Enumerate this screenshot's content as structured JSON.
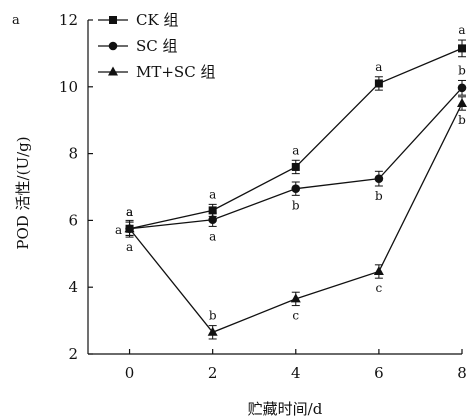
{
  "panel_label": "a",
  "chart_data": {
    "type": "line",
    "xlabel": "贮藏时间/d",
    "ylabel": "POD 活性/(U/g)",
    "x": [
      0,
      2,
      4,
      6,
      8
    ],
    "xlim": [
      -1,
      8
    ],
    "ylim": [
      2,
      12
    ],
    "xticks": [
      "0",
      "2",
      "4",
      "6",
      "8"
    ],
    "yticks": [
      "2",
      "4",
      "6",
      "8",
      "10",
      "12"
    ],
    "grid": false,
    "legend_position": "top-left",
    "series": [
      {
        "name": "CK 组",
        "marker": "square",
        "values": [
          5.75,
          6.3,
          7.6,
          10.1,
          11.15
        ],
        "errors": [
          0.2,
          0.18,
          0.2,
          0.2,
          0.25
        ],
        "sig_labels": [
          "a",
          "a",
          "a",
          "a",
          "a"
        ],
        "sig_pos": [
          "above",
          "above",
          "above",
          "above",
          "above"
        ]
      },
      {
        "name": "SC 组",
        "marker": "circle",
        "values": [
          5.75,
          6.02,
          6.95,
          7.25,
          9.97
        ],
        "errors": [
          0.2,
          0.2,
          0.2,
          0.22,
          0.22
        ],
        "sig_labels": [
          "a",
          "a",
          "b",
          "b",
          "b"
        ],
        "sig_pos": [
          "above",
          "below",
          "below",
          "below",
          "above"
        ]
      },
      {
        "name": "MT+SC 组",
        "marker": "triangle",
        "values": [
          5.75,
          2.65,
          3.65,
          4.47,
          9.5
        ],
        "errors": [
          0.25,
          0.2,
          0.2,
          0.2,
          0.2
        ],
        "sig_labels": [
          "a",
          "b",
          "c",
          "c",
          "b"
        ],
        "sig_pos": [
          "below",
          "above",
          "below",
          "below",
          "below"
        ]
      }
    ],
    "extra_labels": [
      {
        "x": 0,
        "y": 5.75,
        "text": "a",
        "side": "left"
      }
    ]
  }
}
